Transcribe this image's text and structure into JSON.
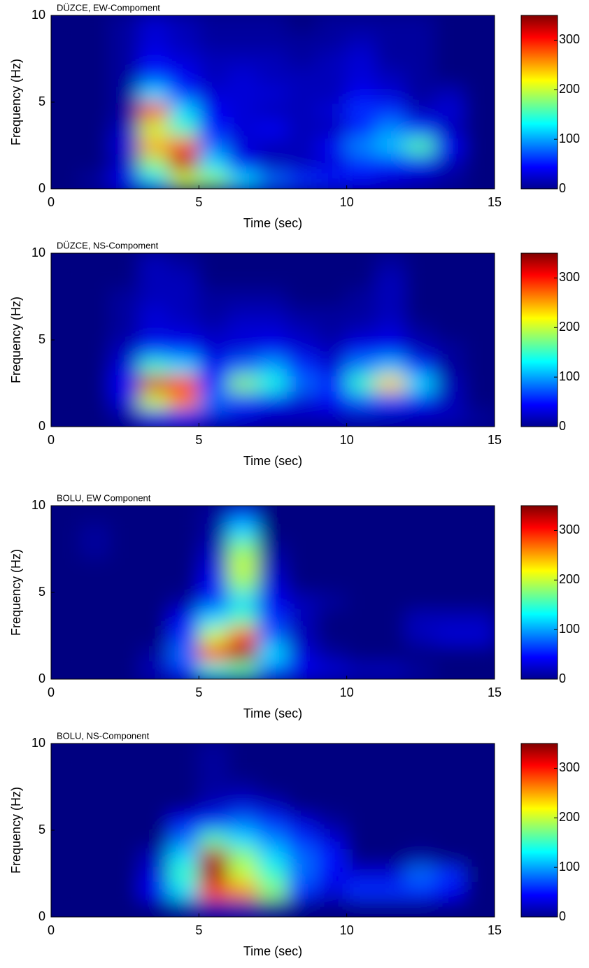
{
  "chart_data": [
    {
      "type": "contour",
      "title": "DÜZCE, EW-Compoment",
      "x_label": "Time (sec)",
      "y_label": "Frequency (Hz)",
      "xlim": [
        0,
        15
      ],
      "xticks": [
        0,
        5,
        10,
        15
      ],
      "ylim": [
        0,
        10
      ],
      "yticks": [
        0,
        5,
        10
      ],
      "colorbar": {
        "lim": [
          0,
          350
        ],
        "ticks": [
          0,
          100,
          200,
          300
        ]
      },
      "x": [
        0.5,
        1.5,
        2.5,
        3.5,
        4.5,
        5.5,
        6.5,
        7.5,
        8.5,
        9.5,
        10.5,
        11.5,
        12.5,
        13.5,
        14.5
      ],
      "y": [
        0.5,
        1.5,
        2.5,
        3.5,
        4.5,
        5.5,
        6.5,
        7.5,
        8.5,
        9.5
      ],
      "z": [
        [
          0,
          10,
          40,
          120,
          200,
          180,
          120,
          80,
          60,
          50,
          40,
          30,
          20,
          10,
          0
        ],
        [
          0,
          0,
          20,
          180,
          330,
          120,
          40,
          20,
          20,
          30,
          60,
          50,
          40,
          20,
          0
        ],
        [
          0,
          0,
          30,
          250,
          280,
          80,
          30,
          20,
          20,
          40,
          90,
          110,
          160,
          40,
          0
        ],
        [
          0,
          0,
          20,
          200,
          150,
          50,
          30,
          40,
          20,
          20,
          50,
          90,
          60,
          20,
          0
        ],
        [
          0,
          0,
          10,
          300,
          120,
          40,
          30,
          20,
          20,
          30,
          60,
          60,
          20,
          30,
          0
        ],
        [
          0,
          0,
          10,
          120,
          60,
          30,
          30,
          30,
          20,
          20,
          40,
          30,
          10,
          20,
          0
        ],
        [
          0,
          0,
          10,
          60,
          40,
          20,
          30,
          20,
          20,
          20,
          30,
          20,
          10,
          0,
          0
        ],
        [
          0,
          0,
          10,
          40,
          30,
          20,
          20,
          20,
          10,
          20,
          30,
          10,
          10,
          0,
          0
        ],
        [
          0,
          0,
          10,
          30,
          20,
          10,
          10,
          10,
          10,
          10,
          20,
          10,
          10,
          0,
          0
        ],
        [
          0,
          0,
          10,
          30,
          20,
          10,
          10,
          10,
          0,
          10,
          10,
          10,
          10,
          0,
          0
        ]
      ]
    },
    {
      "type": "contour",
      "title": "DÜZCE, NS-Compoment",
      "x_label": "Time (sec)",
      "y_label": "Frequency (Hz)",
      "xlim": [
        0,
        15
      ],
      "xticks": [
        0,
        5,
        10,
        15
      ],
      "ylim": [
        0,
        10
      ],
      "yticks": [
        0,
        5,
        10
      ],
      "colorbar": {
        "lim": [
          0,
          350
        ],
        "ticks": [
          0,
          100,
          200,
          300
        ]
      },
      "x": [
        0.5,
        1.5,
        2.5,
        3.5,
        4.5,
        5.5,
        6.5,
        7.5,
        8.5,
        9.5,
        10.5,
        11.5,
        12.5,
        13.5,
        14.5
      ],
      "y": [
        0.5,
        1.5,
        2.5,
        3.5,
        4.5,
        5.5,
        6.5,
        7.5,
        8.5,
        9.5
      ],
      "z": [
        [
          0,
          0,
          10,
          40,
          50,
          30,
          30,
          20,
          20,
          20,
          20,
          20,
          20,
          20,
          10
        ],
        [
          0,
          0,
          30,
          200,
          260,
          80,
          60,
          40,
          30,
          40,
          70,
          60,
          40,
          20,
          0
        ],
        [
          0,
          0,
          40,
          320,
          300,
          60,
          180,
          140,
          80,
          60,
          150,
          230,
          120,
          20,
          0
        ],
        [
          0,
          0,
          30,
          150,
          120,
          40,
          80,
          100,
          60,
          30,
          90,
          110,
          60,
          10,
          0
        ],
        [
          0,
          0,
          20,
          60,
          50,
          30,
          30,
          40,
          30,
          20,
          40,
          40,
          20,
          10,
          0
        ],
        [
          0,
          0,
          10,
          30,
          30,
          20,
          30,
          30,
          20,
          10,
          20,
          30,
          10,
          0,
          0
        ],
        [
          0,
          0,
          10,
          30,
          20,
          10,
          20,
          20,
          10,
          10,
          10,
          20,
          0,
          0,
          0
        ],
        [
          0,
          0,
          10,
          20,
          20,
          10,
          10,
          10,
          0,
          0,
          10,
          20,
          0,
          0,
          0
        ],
        [
          0,
          0,
          0,
          20,
          20,
          0,
          0,
          0,
          0,
          0,
          0,
          20,
          0,
          0,
          0
        ],
        [
          0,
          0,
          0,
          20,
          10,
          0,
          0,
          0,
          0,
          0,
          0,
          10,
          0,
          0,
          0
        ]
      ]
    },
    {
      "type": "contour",
      "title": "BOLU, EW Component",
      "x_label": "Time (sec)",
      "y_label": "Frequency (Hz)",
      "xlim": [
        0,
        15
      ],
      "xticks": [
        0,
        5,
        10,
        15
      ],
      "ylim": [
        0,
        10
      ],
      "yticks": [
        0,
        5,
        10
      ],
      "colorbar": {
        "lim": [
          0,
          350
        ],
        "ticks": [
          0,
          100,
          200,
          300
        ]
      },
      "x": [
        0.5,
        1.5,
        2.5,
        3.5,
        4.5,
        5.5,
        6.5,
        7.5,
        8.5,
        9.5,
        10.5,
        11.5,
        12.5,
        13.5,
        14.5
      ],
      "y": [
        0.5,
        1.5,
        2.5,
        3.5,
        4.5,
        5.5,
        6.5,
        7.5,
        8.5,
        9.5
      ],
      "z": [
        [
          0,
          0,
          0,
          20,
          60,
          140,
          160,
          80,
          40,
          30,
          20,
          20,
          10,
          0,
          0
        ],
        [
          0,
          0,
          0,
          10,
          80,
          300,
          340,
          120,
          30,
          10,
          0,
          0,
          0,
          0,
          0
        ],
        [
          0,
          0,
          0,
          0,
          60,
          200,
          280,
          80,
          20,
          0,
          0,
          0,
          20,
          30,
          30
        ],
        [
          0,
          0,
          0,
          0,
          40,
          120,
          160,
          60,
          20,
          0,
          0,
          0,
          20,
          20,
          20
        ],
        [
          0,
          0,
          0,
          0,
          10,
          60,
          120,
          40,
          20,
          10,
          0,
          0,
          0,
          0,
          0
        ],
        [
          0,
          0,
          0,
          0,
          0,
          40,
          180,
          30,
          0,
          0,
          0,
          0,
          0,
          0,
          0
        ],
        [
          0,
          0,
          0,
          0,
          0,
          30,
          200,
          20,
          0,
          0,
          0,
          0,
          0,
          0,
          0
        ],
        [
          0,
          10,
          0,
          0,
          0,
          20,
          180,
          10,
          0,
          0,
          0,
          0,
          0,
          0,
          0
        ],
        [
          0,
          10,
          0,
          0,
          0,
          10,
          120,
          0,
          0,
          0,
          0,
          0,
          0,
          0,
          0
        ],
        [
          0,
          0,
          0,
          0,
          0,
          10,
          80,
          0,
          0,
          0,
          0,
          0,
          0,
          0,
          0
        ]
      ]
    },
    {
      "type": "contour",
      "title": "BOLU, NS-Component",
      "x_label": "Time (sec)",
      "y_label": "Frequency (Hz)",
      "xlim": [
        0,
        15
      ],
      "xticks": [
        0,
        5,
        10,
        15
      ],
      "ylim": [
        0,
        10
      ],
      "yticks": [
        0,
        5,
        10
      ],
      "colorbar": {
        "lim": [
          0,
          350
        ],
        "ticks": [
          0,
          100,
          200,
          300
        ]
      },
      "x": [
        0.5,
        1.5,
        2.5,
        3.5,
        4.5,
        5.5,
        6.5,
        7.5,
        8.5,
        9.5,
        10.5,
        11.5,
        12.5,
        13.5,
        14.5
      ],
      "y": [
        0.5,
        1.5,
        2.5,
        3.5,
        4.5,
        5.5,
        6.5,
        7.5,
        8.5,
        9.5
      ],
      "z": [
        [
          0,
          0,
          0,
          0,
          10,
          20,
          20,
          10,
          0,
          0,
          0,
          0,
          0,
          0,
          0
        ],
        [
          0,
          0,
          0,
          40,
          120,
          280,
          260,
          180,
          60,
          30,
          60,
          60,
          60,
          40,
          0
        ],
        [
          0,
          0,
          0,
          30,
          150,
          340,
          200,
          150,
          80,
          40,
          30,
          30,
          80,
          60,
          0
        ],
        [
          0,
          0,
          0,
          20,
          120,
          330,
          180,
          120,
          80,
          50,
          0,
          0,
          10,
          0,
          0
        ],
        [
          0,
          0,
          0,
          0,
          80,
          160,
          120,
          90,
          60,
          30,
          0,
          0,
          0,
          0,
          0
        ],
        [
          0,
          0,
          0,
          0,
          40,
          60,
          80,
          60,
          30,
          10,
          0,
          0,
          0,
          0,
          0
        ],
        [
          0,
          0,
          0,
          0,
          0,
          20,
          30,
          20,
          0,
          0,
          0,
          0,
          0,
          0,
          0
        ],
        [
          0,
          0,
          0,
          0,
          0,
          10,
          10,
          0,
          0,
          0,
          0,
          0,
          0,
          0,
          0
        ],
        [
          0,
          0,
          0,
          0,
          0,
          10,
          0,
          0,
          0,
          0,
          0,
          0,
          0,
          0,
          0
        ],
        [
          0,
          0,
          0,
          0,
          0,
          10,
          0,
          0,
          0,
          0,
          0,
          0,
          0,
          0,
          0
        ]
      ]
    }
  ]
}
